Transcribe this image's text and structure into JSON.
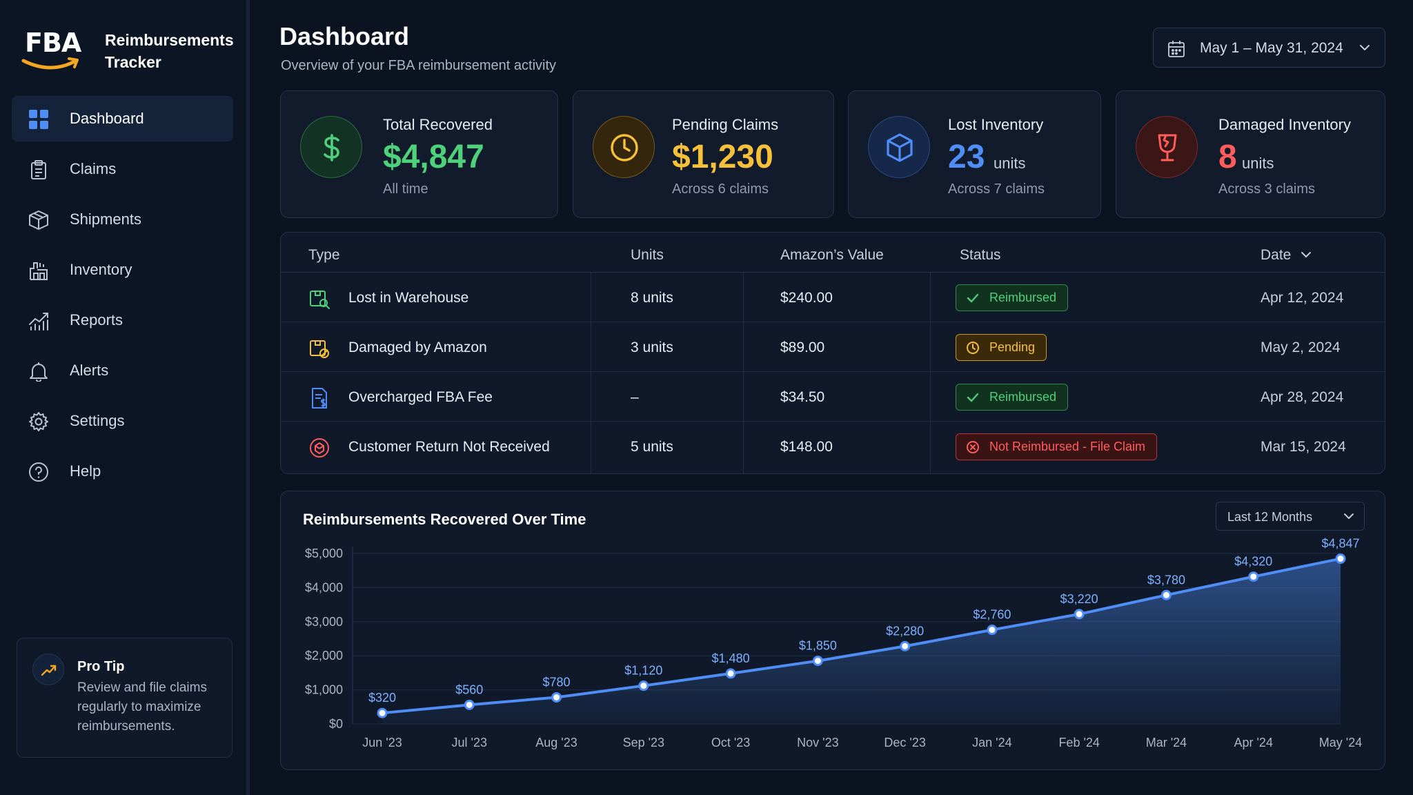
{
  "app": {
    "logo_text": "FBA",
    "name": "Reimbursements Tracker"
  },
  "sidebar": {
    "items": [
      {
        "label": "Dashboard",
        "icon": "grid-icon",
        "active": true
      },
      {
        "label": "Claims",
        "icon": "clipboard-icon",
        "active": false
      },
      {
        "label": "Shipments",
        "icon": "box-icon",
        "active": false
      },
      {
        "label": "Inventory",
        "icon": "warehouse-icon",
        "active": false
      },
      {
        "label": "Reports",
        "icon": "chart-icon",
        "active": false
      },
      {
        "label": "Alerts",
        "icon": "bell-icon",
        "active": false
      },
      {
        "label": "Settings",
        "icon": "gear-icon",
        "active": false
      },
      {
        "label": "Help",
        "icon": "help-icon",
        "active": false
      }
    ],
    "tip": {
      "title": "Pro Tip",
      "text": "Review and file claims regularly to maximize reimbursements."
    }
  },
  "header": {
    "title": "Dashboard",
    "subtitle": "Overview of your FBA reimbursement activity",
    "date_range": "May 1 – May 31, 2024"
  },
  "stats": [
    {
      "label": "Total Recovered",
      "value": "$4,847",
      "unit": "",
      "foot": "All time",
      "color": "#4fd07a",
      "icon": "dollar-icon"
    },
    {
      "label": "Pending Claims",
      "value": "$1,230",
      "unit": "",
      "foot": "Across 6 claims",
      "color": "#f6c03a",
      "icon": "clock-icon"
    },
    {
      "label": "Lost Inventory",
      "value": "23",
      "unit": "units",
      "foot": "Across 7 claims",
      "color": "#4f8ef7",
      "icon": "cube-icon"
    },
    {
      "label": "Damaged Inventory",
      "value": "8",
      "unit": "units",
      "foot": "Across 3 claims",
      "color": "#ff5c5c",
      "icon": "broken-glass-icon"
    }
  ],
  "table": {
    "headers": {
      "type": "Type",
      "units": "Units",
      "value": "Amazon’s Value",
      "status": "Status",
      "date": "Date"
    },
    "rows": [
      {
        "type": "Lost in Warehouse",
        "units": "8 units",
        "value": "$240.00",
        "status": "Reimbursed",
        "status_kind": "green",
        "date": "Apr 12, 2024",
        "icon": "lost-package-icon"
      },
      {
        "type": "Damaged by Amazon",
        "units": "3 units",
        "value": "$89.00",
        "status": "Pending",
        "status_kind": "yellow",
        "date": "May 2, 2024",
        "icon": "damaged-package-icon"
      },
      {
        "type": "Overcharged FBA Fee",
        "units": "–",
        "value": "$34.50",
        "status": "Reimbursed",
        "status_kind": "green",
        "date": "Apr 28, 2024",
        "icon": "invoice-icon"
      },
      {
        "type": "Customer Return Not Received",
        "units": "5 units",
        "value": "$148.00",
        "status": "Not Reimbursed - File Claim",
        "status_kind": "red",
        "date": "Mar 15, 2024",
        "icon": "return-icon"
      }
    ]
  },
  "chart": {
    "title": "Reimbursements Recovered Over Time",
    "range": "Last 12 Months"
  },
  "chart_data": {
    "type": "area",
    "title": "Reimbursements Recovered Over Time",
    "categories": [
      "Jun '23",
      "Jul '23",
      "Aug '23",
      "Sep '23",
      "Oct '23",
      "Nov '23",
      "Dec '23",
      "Jan '24",
      "Feb '24",
      "Mar '24",
      "Apr '24",
      "May '24"
    ],
    "values": [
      320,
      560,
      780,
      1120,
      1480,
      1850,
      2280,
      2760,
      3220,
      3780,
      4320,
      4847
    ],
    "value_labels": [
      "$320",
      "$560",
      "$780",
      "$1,120",
      "$1,480",
      "$1,850",
      "$2,280",
      "$2,760",
      "$3,220",
      "$3,780",
      "$4,320",
      "$4,847"
    ],
    "yticks": [
      "$0",
      "$1,000",
      "$2,000",
      "$3,000",
      "$4,000",
      "$5,000"
    ],
    "ylim": [
      0,
      5000
    ],
    "grid": true,
    "color": "#4f8ef7"
  }
}
